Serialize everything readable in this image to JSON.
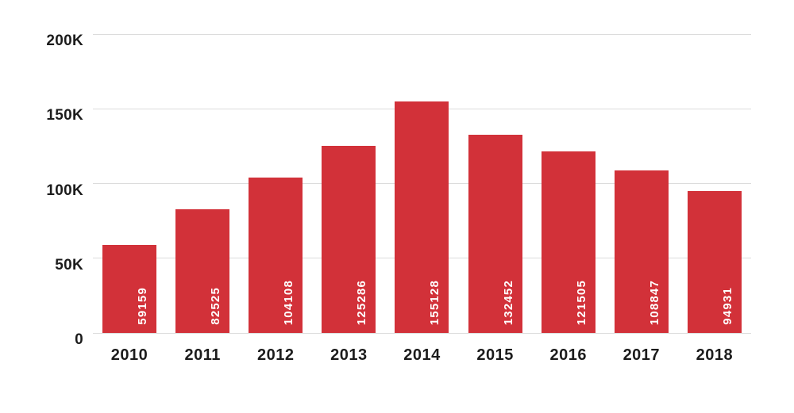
{
  "chart_data": {
    "type": "bar",
    "title": "",
    "xlabel": "",
    "ylabel": "",
    "categories": [
      "2010",
      "2011",
      "2012",
      "2013",
      "2014",
      "2015",
      "2016",
      "2017",
      "2018"
    ],
    "values": [
      59159,
      82525,
      104108,
      125286,
      155128,
      132452,
      121505,
      108847,
      94931
    ],
    "value_labels": [
      "59159",
      "82525",
      "104108",
      "125286",
      "155128",
      "132452",
      "121505",
      "108847",
      "94931"
    ],
    "ylim": [
      0,
      200000
    ],
    "yticks": [
      {
        "value": 0,
        "label": "0"
      },
      {
        "value": 50000,
        "label": "50K"
      },
      {
        "value": 100000,
        "label": "100K"
      },
      {
        "value": 150000,
        "label": "150K"
      },
      {
        "value": 200000,
        "label": "200K"
      }
    ],
    "grid": true,
    "legend": "none",
    "value_label_rotation_deg": -90,
    "colors": {
      "bar": "#d23139",
      "value_label": "#ffffff",
      "axis_text": "#1c1c1c",
      "gridline": "#dcdcdc",
      "background": "#ffffff"
    }
  }
}
